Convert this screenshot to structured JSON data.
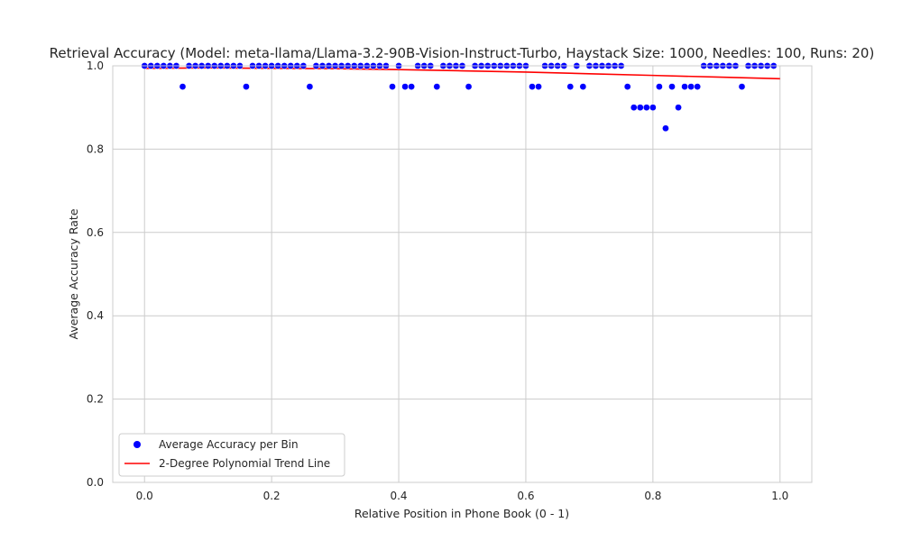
{
  "chart_data": {
    "type": "scatter",
    "title": "Retrieval Accuracy (Model: meta-llama/Llama-3.2-90B-Vision-Instruct-Turbo, Haystack Size: 1000, Needles: 100, Runs: 20)",
    "xlabel": "Relative Position in Phone Book (0 - 1)",
    "ylabel": "Average Accuracy Rate",
    "xlim": [
      -0.05,
      1.05
    ],
    "ylim": [
      0.0,
      1.0
    ],
    "xticks": [
      "0.0",
      "0.2",
      "0.4",
      "0.6",
      "0.8",
      "1.0"
    ],
    "yticks": [
      "0.0",
      "0.2",
      "0.4",
      "0.6",
      "0.8",
      "1.0"
    ],
    "grid": true,
    "legend_position": "lower-left",
    "series": [
      {
        "name": "Average Accuracy per Bin",
        "kind": "scatter",
        "color": "#0000ff",
        "x": [
          0.0,
          0.01,
          0.02,
          0.03,
          0.04,
          0.05,
          0.06,
          0.07,
          0.08,
          0.09,
          0.1,
          0.11,
          0.12,
          0.13,
          0.14,
          0.15,
          0.16,
          0.17,
          0.18,
          0.19,
          0.2,
          0.21,
          0.22,
          0.23,
          0.24,
          0.25,
          0.26,
          0.27,
          0.28,
          0.29,
          0.3,
          0.31,
          0.32,
          0.33,
          0.34,
          0.35,
          0.36,
          0.37,
          0.38,
          0.39,
          0.4,
          0.41,
          0.42,
          0.43,
          0.44,
          0.45,
          0.46,
          0.47,
          0.48,
          0.49,
          0.5,
          0.51,
          0.52,
          0.53,
          0.54,
          0.55,
          0.56,
          0.57,
          0.58,
          0.59,
          0.6,
          0.61,
          0.62,
          0.63,
          0.64,
          0.65,
          0.66,
          0.67,
          0.68,
          0.69,
          0.7,
          0.71,
          0.72,
          0.73,
          0.74,
          0.75,
          0.76,
          0.77,
          0.78,
          0.79,
          0.8,
          0.81,
          0.82,
          0.83,
          0.84,
          0.85,
          0.86,
          0.87,
          0.88,
          0.89,
          0.9,
          0.91,
          0.92,
          0.93,
          0.94,
          0.95,
          0.96,
          0.97,
          0.98,
          0.99
        ],
        "y": [
          1.0,
          1.0,
          1.0,
          1.0,
          1.0,
          1.0,
          0.95,
          1.0,
          1.0,
          1.0,
          1.0,
          1.0,
          1.0,
          1.0,
          1.0,
          1.0,
          0.95,
          1.0,
          1.0,
          1.0,
          1.0,
          1.0,
          1.0,
          1.0,
          1.0,
          1.0,
          0.95,
          1.0,
          1.0,
          1.0,
          1.0,
          1.0,
          1.0,
          1.0,
          1.0,
          1.0,
          1.0,
          1.0,
          1.0,
          0.95,
          1.0,
          0.95,
          0.95,
          1.0,
          1.0,
          1.0,
          0.95,
          1.0,
          1.0,
          1.0,
          1.0,
          0.95,
          1.0,
          1.0,
          1.0,
          1.0,
          1.0,
          1.0,
          1.0,
          1.0,
          1.0,
          0.95,
          0.95,
          1.0,
          1.0,
          1.0,
          1.0,
          0.95,
          1.0,
          0.95,
          1.0,
          1.0,
          1.0,
          1.0,
          1.0,
          1.0,
          0.95,
          0.9,
          0.9,
          0.9,
          0.9,
          0.95,
          0.85,
          0.95,
          0.9,
          0.95,
          0.95,
          0.95,
          1.0,
          1.0,
          1.0,
          1.0,
          1.0,
          1.0,
          0.95,
          1.0,
          1.0,
          1.0,
          1.0,
          1.0
        ]
      },
      {
        "name": "2-Degree Polynomial Trend Line",
        "kind": "line",
        "color": "#ff0000",
        "x": [
          0.0,
          0.1,
          0.2,
          0.3,
          0.4,
          0.5,
          0.6,
          0.7,
          0.8,
          0.9,
          1.0
        ],
        "y": [
          0.994,
          0.995,
          0.994,
          0.993,
          0.991,
          0.988,
          0.985,
          0.981,
          0.977,
          0.973,
          0.969
        ]
      }
    ]
  }
}
